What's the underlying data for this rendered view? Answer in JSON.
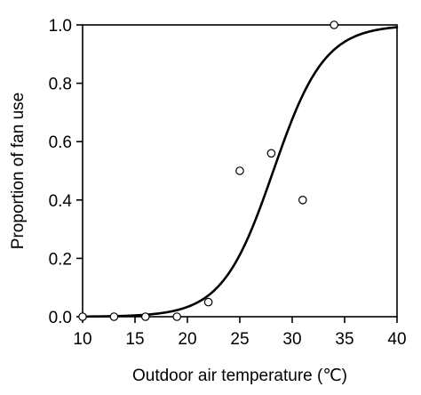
{
  "chart_data": {
    "type": "scatter",
    "title": "",
    "xlabel": "Outdoor air temperature (℃)",
    "ylabel": "Proportion of fan use",
    "xlim": [
      10,
      40
    ],
    "ylim": [
      0,
      1.0
    ],
    "x_ticks": [
      10,
      15,
      20,
      25,
      30,
      35,
      40
    ],
    "y_ticks": [
      0.0,
      0.2,
      0.4,
      0.6,
      0.8,
      1.0
    ],
    "x_tick_labels": [
      "10",
      "15",
      "20",
      "25",
      "30",
      "35",
      "40"
    ],
    "y_tick_labels": [
      "0.0",
      "0.2",
      "0.4",
      "0.6",
      "0.8",
      "1.0"
    ],
    "grid": false,
    "series": [
      {
        "kind": "points",
        "marker": "open-circle",
        "x": [
          10,
          13,
          16,
          19,
          22,
          25,
          28,
          31,
          34
        ],
        "y": [
          0.0,
          0.0,
          0.0,
          0.0,
          0.05,
          0.5,
          0.56,
          0.4,
          1.0
        ]
      },
      {
        "kind": "fitted-curve",
        "model": "logistic",
        "midpoint": 28.2,
        "slope": 0.41
      }
    ]
  }
}
